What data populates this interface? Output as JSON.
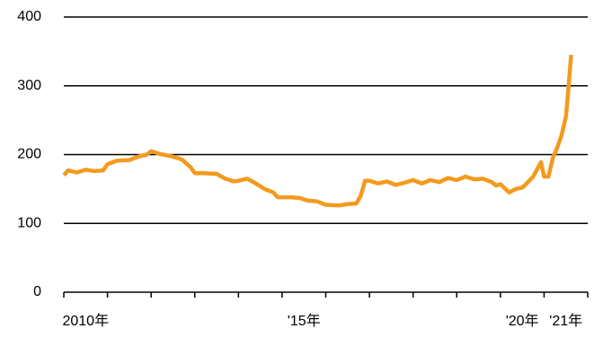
{
  "chart_data": {
    "type": "line",
    "x": [
      2010.0,
      2010.1,
      2010.3,
      2010.5,
      2010.7,
      2010.9,
      2011.0,
      2011.2,
      2011.5,
      2011.7,
      2011.9,
      2012.0,
      2012.2,
      2012.5,
      2012.7,
      2012.9,
      2013.0,
      2013.2,
      2013.5,
      2013.7,
      2013.9,
      2014.0,
      2014.2,
      2014.4,
      2014.6,
      2014.8,
      2014.9,
      2015.2,
      2015.4,
      2015.6,
      2015.8,
      2016.0,
      2016.3,
      2016.5,
      2016.7,
      2016.8,
      2016.9,
      2017.0,
      2017.2,
      2017.4,
      2017.6,
      2017.8,
      2018.0,
      2018.2,
      2018.4,
      2018.6,
      2018.8,
      2019.0,
      2019.2,
      2019.4,
      2019.6,
      2019.8,
      2019.9,
      2020.0,
      2020.2,
      2020.35,
      2020.5,
      2020.6,
      2020.75,
      2020.93,
      2021.0,
      2021.1,
      2021.2,
      2021.3,
      2021.4,
      2021.5,
      2021.55,
      2021.62
    ],
    "series": [
      {
        "color": "#f39a1e",
        "values": [
          170,
          177,
          174,
          178,
          176,
          177,
          186,
          191,
          192,
          197,
          200,
          205,
          201,
          197,
          193,
          182,
          173,
          173,
          172,
          165,
          161,
          162,
          165,
          158,
          150,
          145,
          138,
          138,
          137,
          133,
          132,
          127,
          126,
          128,
          129,
          140,
          162,
          162,
          158,
          161,
          156,
          159,
          163,
          158,
          163,
          160,
          166,
          163,
          168,
          164,
          165,
          160,
          155,
          157,
          145,
          150,
          152,
          158,
          168,
          189,
          168,
          168,
          195,
          210,
          228,
          255,
          290,
          345
        ]
      }
    ],
    "xlim": [
      2010,
      2022
    ],
    "xticks": [
      2010,
      2011,
      2012,
      2013,
      2014,
      2015,
      2016,
      2017,
      2018,
      2019,
      2020,
      2021,
      2022
    ],
    "xtick_labels": [
      {
        "value": 2010.5,
        "label": "2010年"
      },
      {
        "value": 2015.5,
        "label": "'15年"
      },
      {
        "value": 2020.5,
        "label": "'20年"
      },
      {
        "value": 2021.5,
        "label": "'21年"
      }
    ],
    "ylim": [
      0,
      400
    ],
    "yticks": [
      0,
      100,
      200,
      300,
      400
    ],
    "grid": true
  }
}
